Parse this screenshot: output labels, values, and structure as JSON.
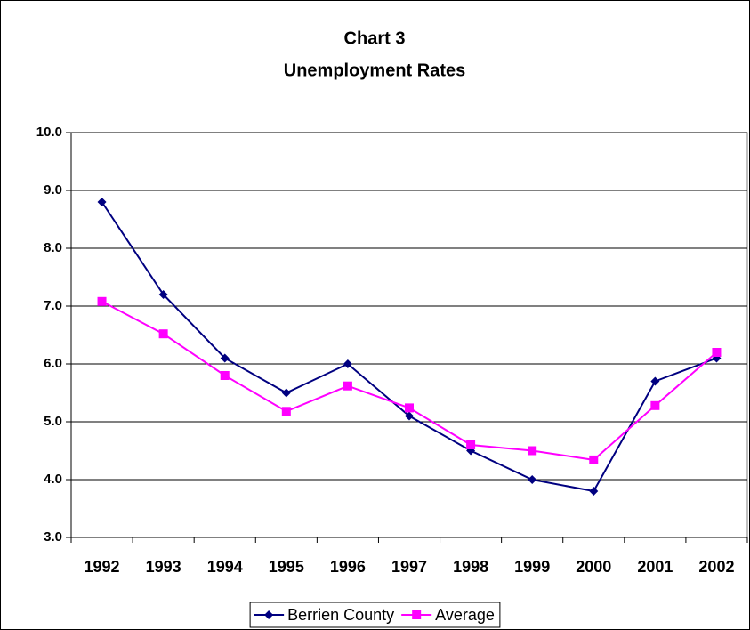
{
  "chart_data": {
    "type": "line",
    "title": "Chart 3",
    "subtitle": "Unemployment Rates",
    "categories": [
      "1992",
      "1993",
      "1994",
      "1995",
      "1996",
      "1997",
      "1998",
      "1999",
      "2000",
      "2001",
      "2002"
    ],
    "series": [
      {
        "name": "Berrien County",
        "color": "#000080",
        "marker": "diamond",
        "values": [
          8.8,
          7.2,
          6.1,
          5.5,
          6.0,
          5.1,
          4.5,
          4.0,
          3.8,
          5.7,
          6.1
        ]
      },
      {
        "name": "Average",
        "color": "#ff00ff",
        "marker": "square",
        "values": [
          7.08,
          6.52,
          5.8,
          5.18,
          5.62,
          5.24,
          4.6,
          4.5,
          4.34,
          5.28,
          6.2
        ]
      }
    ],
    "ylim": [
      3,
      10
    ],
    "yticks": [
      {
        "value": 3,
        "label": "3.0"
      },
      {
        "value": 4,
        "label": "4.0"
      },
      {
        "value": 5,
        "label": "5.0"
      },
      {
        "value": 6,
        "label": "6.0"
      },
      {
        "value": 7,
        "label": "7.0"
      },
      {
        "value": 8,
        "label": "8.0"
      },
      {
        "value": 9,
        "label": "9.0"
      },
      {
        "value": 10,
        "label": "10.0"
      }
    ],
    "grid": true,
    "legend": "bottom"
  }
}
